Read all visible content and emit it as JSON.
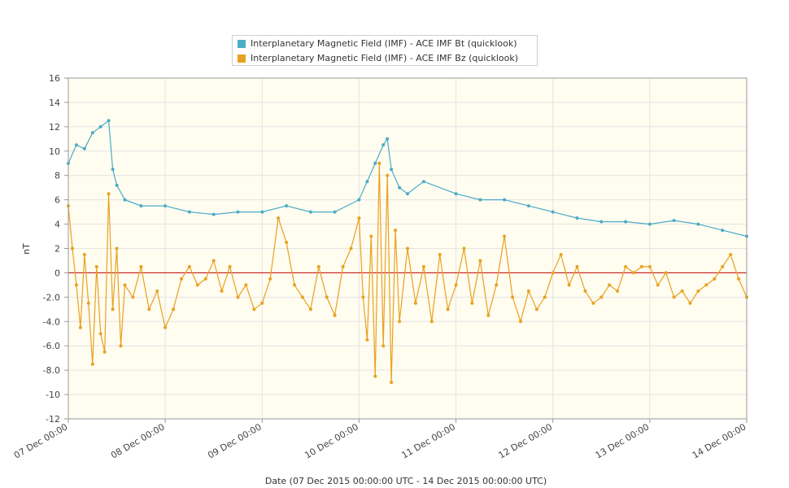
{
  "chart_data": {
    "type": "line",
    "title": "",
    "xlabel": "Date (07 Dec 2015 00:00:00 UTC - 14 Dec 2015 00:00:00 UTC)",
    "ylabel": "nT",
    "xlim": [
      "2015-12-07T00:00",
      "2015-12-14T00:00"
    ],
    "ylim": [
      -12,
      16
    ],
    "x_ticks": [
      "07 Dec 00:00",
      "08 Dec 00:00",
      "09 Dec 00:00",
      "10 Dec 00:00",
      "11 Dec 00:00",
      "12 Dec 00:00",
      "13 Dec 00:00",
      "14 Dec 00:00"
    ],
    "y_ticks": [
      "16",
      "14",
      "12",
      "10",
      "8",
      "6",
      "4",
      "2",
      "0",
      "-2.0",
      "-4.0",
      "-6.0",
      "-8.0",
      "-10",
      "-12"
    ],
    "y_tick_values": [
      16,
      14,
      12,
      10,
      8,
      6,
      4,
      2,
      0,
      -2,
      -4,
      -6,
      -8,
      -10,
      -12
    ],
    "reference_line": 0,
    "grid": true,
    "legend_position": "top",
    "series": [
      {
        "name": "Interplanetary Magnetic Field (IMF) - ACE IMF Bt (quicklook)",
        "color": "#4bacc6",
        "points": [
          [
            "2015-12-07T00:00",
            9.0
          ],
          [
            "2015-12-07T02:00",
            10.5
          ],
          [
            "2015-12-07T04:00",
            10.2
          ],
          [
            "2015-12-07T06:00",
            11.5
          ],
          [
            "2015-12-07T08:00",
            12.0
          ],
          [
            "2015-12-07T10:00",
            12.5
          ],
          [
            "2015-12-07T11:00",
            8.5
          ],
          [
            "2015-12-07T12:00",
            7.2
          ],
          [
            "2015-12-07T14:00",
            6.0
          ],
          [
            "2015-12-07T18:00",
            5.5
          ],
          [
            "2015-12-08T00:00",
            5.5
          ],
          [
            "2015-12-08T06:00",
            5.0
          ],
          [
            "2015-12-08T12:00",
            4.8
          ],
          [
            "2015-12-08T18:00",
            5.0
          ],
          [
            "2015-12-09T00:00",
            5.0
          ],
          [
            "2015-12-09T06:00",
            5.5
          ],
          [
            "2015-12-09T12:00",
            5.0
          ],
          [
            "2015-12-09T18:00",
            5.0
          ],
          [
            "2015-12-10T00:00",
            6.0
          ],
          [
            "2015-12-10T02:00",
            7.5
          ],
          [
            "2015-12-10T04:00",
            9.0
          ],
          [
            "2015-12-10T06:00",
            10.5
          ],
          [
            "2015-12-10T07:00",
            11.0
          ],
          [
            "2015-12-10T08:00",
            8.5
          ],
          [
            "2015-12-10T10:00",
            7.0
          ],
          [
            "2015-12-10T12:00",
            6.5
          ],
          [
            "2015-12-10T16:00",
            7.5
          ],
          [
            "2015-12-11T00:00",
            6.5
          ],
          [
            "2015-12-11T06:00",
            6.0
          ],
          [
            "2015-12-11T12:00",
            6.0
          ],
          [
            "2015-12-11T18:00",
            5.5
          ],
          [
            "2015-12-12T00:00",
            5.0
          ],
          [
            "2015-12-12T06:00",
            4.5
          ],
          [
            "2015-12-12T12:00",
            4.2
          ],
          [
            "2015-12-12T18:00",
            4.2
          ],
          [
            "2015-12-13T00:00",
            4.0
          ],
          [
            "2015-12-13T06:00",
            4.3
          ],
          [
            "2015-12-13T12:00",
            4.0
          ],
          [
            "2015-12-13T18:00",
            3.5
          ],
          [
            "2015-12-14T00:00",
            3.0
          ]
        ]
      },
      {
        "name": "Interplanetary Magnetic Field (IMF) - ACE IMF Bz (quicklook)",
        "color": "#e8a21f",
        "points": [
          [
            "2015-12-07T00:00",
            5.5
          ],
          [
            "2015-12-07T01:00",
            2.0
          ],
          [
            "2015-12-07T02:00",
            -1.0
          ],
          [
            "2015-12-07T03:00",
            -4.5
          ],
          [
            "2015-12-07T04:00",
            1.5
          ],
          [
            "2015-12-07T05:00",
            -2.5
          ],
          [
            "2015-12-07T06:00",
            -7.5
          ],
          [
            "2015-12-07T07:00",
            0.5
          ],
          [
            "2015-12-07T08:00",
            -5.0
          ],
          [
            "2015-12-07T09:00",
            -6.5
          ],
          [
            "2015-12-07T10:00",
            6.5
          ],
          [
            "2015-12-07T11:00",
            -3.0
          ],
          [
            "2015-12-07T12:00",
            2.0
          ],
          [
            "2015-12-07T13:00",
            -6.0
          ],
          [
            "2015-12-07T14:00",
            -1.0
          ],
          [
            "2015-12-07T16:00",
            -2.0
          ],
          [
            "2015-12-07T18:00",
            0.5
          ],
          [
            "2015-12-07T20:00",
            -3.0
          ],
          [
            "2015-12-07T22:00",
            -1.5
          ],
          [
            "2015-12-08T00:00",
            -4.5
          ],
          [
            "2015-12-08T02:00",
            -3.0
          ],
          [
            "2015-12-08T04:00",
            -0.5
          ],
          [
            "2015-12-08T06:00",
            0.5
          ],
          [
            "2015-12-08T08:00",
            -1.0
          ],
          [
            "2015-12-08T10:00",
            -0.5
          ],
          [
            "2015-12-08T12:00",
            1.0
          ],
          [
            "2015-12-08T14:00",
            -1.5
          ],
          [
            "2015-12-08T16:00",
            0.5
          ],
          [
            "2015-12-08T18:00",
            -2.0
          ],
          [
            "2015-12-08T20:00",
            -1.0
          ],
          [
            "2015-12-08T22:00",
            -3.0
          ],
          [
            "2015-12-09T00:00",
            -2.5
          ],
          [
            "2015-12-09T02:00",
            -0.5
          ],
          [
            "2015-12-09T04:00",
            4.5
          ],
          [
            "2015-12-09T06:00",
            2.5
          ],
          [
            "2015-12-09T08:00",
            -1.0
          ],
          [
            "2015-12-09T10:00",
            -2.0
          ],
          [
            "2015-12-09T12:00",
            -3.0
          ],
          [
            "2015-12-09T14:00",
            0.5
          ],
          [
            "2015-12-09T16:00",
            -2.0
          ],
          [
            "2015-12-09T18:00",
            -3.5
          ],
          [
            "2015-12-09T20:00",
            0.5
          ],
          [
            "2015-12-09T22:00",
            2.0
          ],
          [
            "2015-12-10T00:00",
            4.5
          ],
          [
            "2015-12-10T01:00",
            -2.0
          ],
          [
            "2015-12-10T02:00",
            -5.5
          ],
          [
            "2015-12-10T03:00",
            3.0
          ],
          [
            "2015-12-10T04:00",
            -8.5
          ],
          [
            "2015-12-10T05:00",
            9.0
          ],
          [
            "2015-12-10T06:00",
            -6.0
          ],
          [
            "2015-12-10T07:00",
            8.0
          ],
          [
            "2015-12-10T08:00",
            -9.0
          ],
          [
            "2015-12-10T09:00",
            3.5
          ],
          [
            "2015-12-10T10:00",
            -4.0
          ],
          [
            "2015-12-10T12:00",
            2.0
          ],
          [
            "2015-12-10T14:00",
            -2.5
          ],
          [
            "2015-12-10T16:00",
            0.5
          ],
          [
            "2015-12-10T18:00",
            -4.0
          ],
          [
            "2015-12-10T20:00",
            1.5
          ],
          [
            "2015-12-10T22:00",
            -3.0
          ],
          [
            "2015-12-11T00:00",
            -1.0
          ],
          [
            "2015-12-11T02:00",
            2.0
          ],
          [
            "2015-12-11T04:00",
            -2.5
          ],
          [
            "2015-12-11T06:00",
            1.0
          ],
          [
            "2015-12-11T08:00",
            -3.5
          ],
          [
            "2015-12-11T10:00",
            -1.0
          ],
          [
            "2015-12-11T12:00",
            3.0
          ],
          [
            "2015-12-11T14:00",
            -2.0
          ],
          [
            "2015-12-11T16:00",
            -4.0
          ],
          [
            "2015-12-11T18:00",
            -1.5
          ],
          [
            "2015-12-11T20:00",
            -3.0
          ],
          [
            "2015-12-11T22:00",
            -2.0
          ],
          [
            "2015-12-12T00:00",
            0.0
          ],
          [
            "2015-12-12T02:00",
            1.5
          ],
          [
            "2015-12-12T04:00",
            -1.0
          ],
          [
            "2015-12-12T06:00",
            0.5
          ],
          [
            "2015-12-12T08:00",
            -1.5
          ],
          [
            "2015-12-12T10:00",
            -2.5
          ],
          [
            "2015-12-12T12:00",
            -2.0
          ],
          [
            "2015-12-12T14:00",
            -1.0
          ],
          [
            "2015-12-12T16:00",
            -1.5
          ],
          [
            "2015-12-12T18:00",
            0.5
          ],
          [
            "2015-12-12T20:00",
            0.0
          ],
          [
            "2015-12-12T22:00",
            0.5
          ],
          [
            "2015-12-13T00:00",
            0.5
          ],
          [
            "2015-12-13T02:00",
            -1.0
          ],
          [
            "2015-12-13T04:00",
            0.0
          ],
          [
            "2015-12-13T06:00",
            -2.0
          ],
          [
            "2015-12-13T08:00",
            -1.5
          ],
          [
            "2015-12-13T10:00",
            -2.5
          ],
          [
            "2015-12-13T12:00",
            -1.5
          ],
          [
            "2015-12-13T14:00",
            -1.0
          ],
          [
            "2015-12-13T16:00",
            -0.5
          ],
          [
            "2015-12-13T18:00",
            0.5
          ],
          [
            "2015-12-13T20:00",
            1.5
          ],
          [
            "2015-12-13T22:00",
            -0.5
          ],
          [
            "2015-12-14T00:00",
            -2.0
          ]
        ]
      }
    ]
  }
}
